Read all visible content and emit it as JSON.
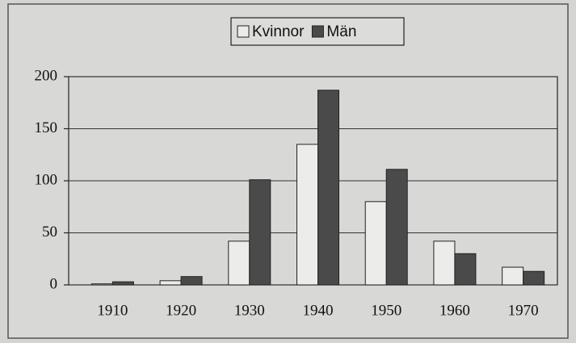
{
  "chart_data": {
    "type": "bar",
    "categories": [
      "1910",
      "1920",
      "1930",
      "1940",
      "1950",
      "1960",
      "1970"
    ],
    "series": [
      {
        "name": "Kvinnor",
        "color": "#ececea",
        "values": [
          1,
          4,
          42,
          135,
          80,
          42,
          17
        ]
      },
      {
        "name": "Män",
        "color": "#4a4a4a",
        "values": [
          3,
          8,
          101,
          187,
          111,
          30,
          13
        ]
      }
    ],
    "ylim": [
      0,
      200
    ],
    "yticks": [
      0,
      50,
      100,
      150,
      200
    ],
    "grid": true,
    "legend": "top"
  }
}
